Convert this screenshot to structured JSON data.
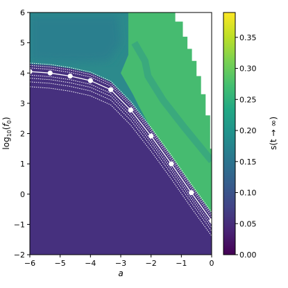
{
  "chart_data": {
    "type": "heatmap",
    "title": "",
    "xlabel": "a",
    "ylabel": "log10(f0)",
    "ylabel_parts": {
      "base": "log",
      "sub1": "10",
      "open": "(",
      "var": "f",
      "sub2": "0",
      "close": ")"
    },
    "xlim": [
      -6,
      0
    ],
    "ylim": [
      -2,
      6
    ],
    "x_ticks": [
      -6,
      -5,
      -4,
      -3,
      -2,
      -1,
      0
    ],
    "x_tick_labels": [
      "−6",
      "−5",
      "−4",
      "−3",
      "−2",
      "−1",
      "0"
    ],
    "y_ticks": [
      -2,
      -1,
      0,
      1,
      2,
      3,
      4,
      5,
      6
    ],
    "y_tick_labels": [
      "−2",
      "−1",
      "0",
      "1",
      "2",
      "3",
      "4",
      "5",
      "6"
    ],
    "colorbar": {
      "label": "s(t → ∞)",
      "range": [
        0.0,
        0.39
      ],
      "ticks": [
        0.0,
        0.05,
        0.1,
        0.15,
        0.2,
        0.25,
        0.3,
        0.35
      ],
      "tick_labels": [
        "0.00",
        "0.05",
        "0.10",
        "0.15",
        "0.20",
        "0.25",
        "0.30",
        "0.35"
      ],
      "colormap": "viridis"
    },
    "regions": [
      {
        "name": "low",
        "value": 0.01
      },
      {
        "name": "upper-left",
        "value": 0.14
      },
      {
        "name": "right",
        "value": 0.24
      },
      {
        "name": "undefined",
        "value": null
      }
    ],
    "boundary_points": [
      {
        "x": -6.0,
        "y": 4.05
      },
      {
        "x": -5.33,
        "y": 4.0
      },
      {
        "x": -4.67,
        "y": 3.9
      },
      {
        "x": -4.0,
        "y": 3.75
      },
      {
        "x": -3.33,
        "y": 3.45
      },
      {
        "x": -2.67,
        "y": 2.78
      },
      {
        "x": -2.0,
        "y": 1.92
      },
      {
        "x": -1.33,
        "y": 1.0
      },
      {
        "x": -0.67,
        "y": 0.05
      },
      {
        "x": 0.0,
        "y": -0.88
      }
    ],
    "boundary_line_style": "solid white with dotted white offset lines",
    "undefined_region_color": "#ffffff"
  }
}
